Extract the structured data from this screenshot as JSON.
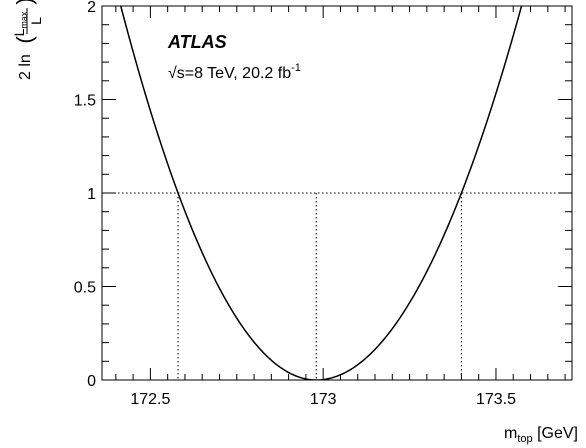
{
  "chart_data": {
    "type": "line",
    "experiment_label": "ATLAS",
    "energy_label": {
      "sqrt": "√s",
      "main": "=8 TeV, 20.2 fb",
      "sup": "-1"
    },
    "xlabel": {
      "main": "m",
      "sub": "top",
      "unit": " [GeV]"
    },
    "ylabel": {
      "prefix": "2 ln",
      "numerator": "L",
      "numerator_sub": "max",
      "denominator": "L"
    },
    "xlim": [
      172.36,
      173.72
    ],
    "ylim": [
      0,
      2
    ],
    "xticks": [
      {
        "value": 172.5,
        "label": "172.5"
      },
      {
        "value": 173.0,
        "label": "173"
      },
      {
        "value": 173.5,
        "label": "173.5"
      }
    ],
    "yticks": [
      {
        "value": 0.0,
        "label": "0"
      },
      {
        "value": 0.5,
        "label": "0.5"
      },
      {
        "value": 1.0,
        "label": "1"
      },
      {
        "value": 1.5,
        "label": "1.5"
      },
      {
        "value": 2.0,
        "label": "2"
      }
    ],
    "curve": {
      "shape": "parabola",
      "x": [
        172.42,
        172.5,
        172.58,
        172.7,
        172.8,
        172.9,
        172.98,
        173.06,
        173.15,
        173.25,
        173.4,
        173.5,
        173.6
      ],
      "y": [
        2.0,
        1.46,
        0.998,
        0.496,
        0.214,
        0.044,
        0.0,
        0.039,
        0.176,
        0.481,
        0.998,
        1.47,
        2.05
      ]
    },
    "minimum_x": 172.98,
    "interval_68": [
      172.58,
      173.4
    ],
    "reference_y": 1.0
  }
}
